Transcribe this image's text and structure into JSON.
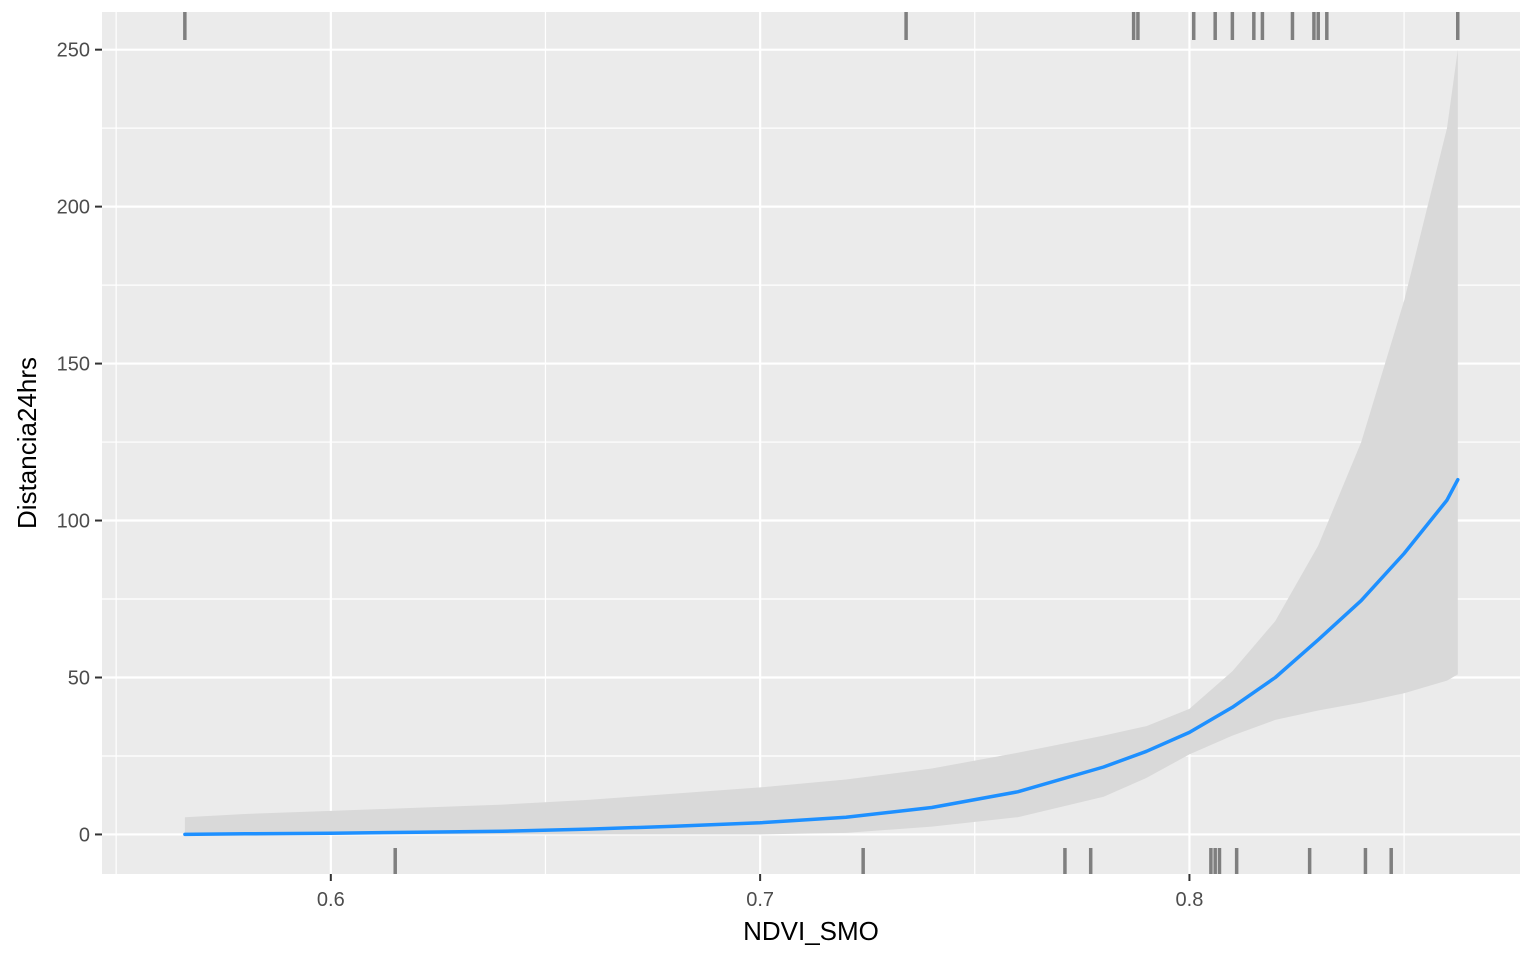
{
  "chart_data": {
    "type": "line",
    "title": "",
    "xlabel": "NDVI_SMO",
    "ylabel": "Distancia24hrs",
    "xlim": [
      0.5467,
      0.877
    ],
    "ylim": [
      -12.6,
      262.0
    ],
    "xticks": [
      0.6,
      0.7,
      0.8
    ],
    "xtick_labels": [
      "0.6",
      "0.7",
      "0.8"
    ],
    "yticks": [
      0,
      50,
      100,
      150,
      200,
      250
    ],
    "ytick_labels": [
      "0",
      "50",
      "100",
      "150",
      "200",
      "250"
    ],
    "grid": true,
    "legend": "none",
    "colors": {
      "panel_bg": "#EBEBEB",
      "grid": "#FFFFFF",
      "line": "#1E90FF",
      "ribbon": "#D9D9D9",
      "rug": "#7F7F7F"
    },
    "series": [
      {
        "x": [
          0.566,
          0.58,
          0.6,
          0.62,
          0.64,
          0.66,
          0.68,
          0.7,
          0.72,
          0.74,
          0.76,
          0.78,
          0.79,
          0.8,
          0.81,
          0.82,
          0.83,
          0.84,
          0.85,
          0.86,
          0.8625
        ],
        "y": [
          0.0,
          0.2,
          0.4,
          0.7,
          1.0,
          1.7,
          2.6,
          3.7,
          5.5,
          8.6,
          13.6,
          21.5,
          26.5,
          32.5,
          40.5,
          50.0,
          62.0,
          74.5,
          89.5,
          106.5,
          113.0
        ],
        "ci_lower": [
          0.0,
          0.0,
          0.0,
          0.0,
          0.0,
          0.0,
          0.0,
          0.0,
          0.5,
          2.5,
          5.5,
          12.0,
          18.0,
          25.5,
          31.5,
          36.5,
          39.5,
          42.0,
          45.0,
          49.0,
          51.0
        ],
        "ci_upper": [
          5.5,
          6.5,
          7.5,
          8.5,
          9.5,
          11.0,
          13.0,
          15.0,
          17.5,
          21.0,
          26.0,
          31.5,
          34.5,
          40.0,
          52.0,
          68.0,
          92.0,
          125.0,
          170.0,
          225.0,
          250.0
        ]
      }
    ],
    "rug_top": [
      0.566,
      0.734,
      0.787,
      0.788,
      0.801,
      0.806,
      0.81,
      0.815,
      0.817,
      0.824,
      0.829,
      0.83,
      0.832,
      0.8625
    ],
    "rug_bottom": [
      0.615,
      0.724,
      0.771,
      0.777,
      0.805,
      0.806,
      0.807,
      0.811,
      0.828,
      0.841,
      0.847
    ]
  }
}
